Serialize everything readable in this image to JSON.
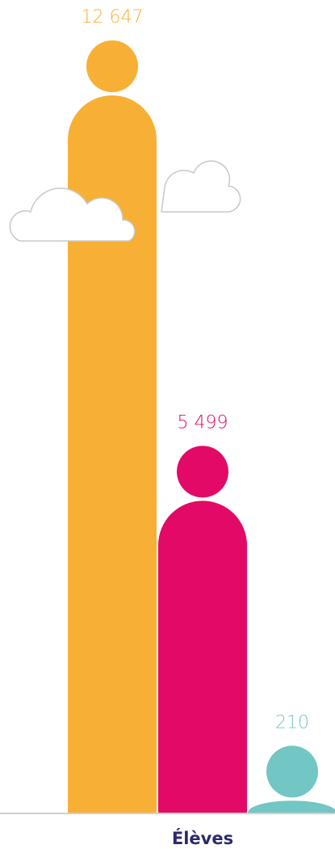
{
  "chart_data": {
    "type": "bar",
    "xlabel": "Élèves",
    "values": [
      12647,
      5499,
      210
    ],
    "value_labels": [
      "12 647",
      "5 499",
      "210"
    ],
    "colors": [
      "#f7b035",
      "#e20a66",
      "#72c6c4"
    ]
  }
}
